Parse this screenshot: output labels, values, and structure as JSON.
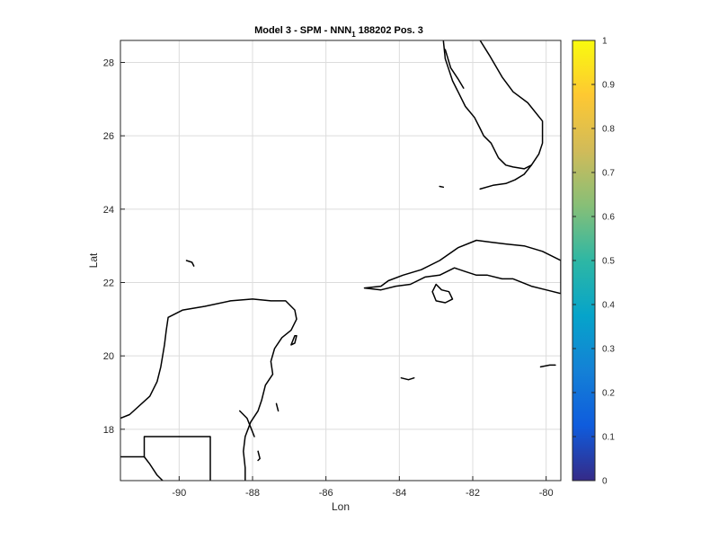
{
  "chart_data": {
    "type": "map",
    "title_parts": [
      "Model 3 - SPM - NNN",
      "1",
      " 188202 Pos. 3"
    ],
    "xlabel": "Lon",
    "ylabel": "Lat",
    "xlim": [
      -91.6,
      -79.6
    ],
    "ylim": [
      16.6,
      28.6
    ],
    "xticks": [
      -90,
      -88,
      -86,
      -84,
      -82,
      -80
    ],
    "yticks": [
      18,
      20,
      22,
      24,
      26,
      28
    ],
    "grid": true,
    "colorbar": {
      "position": "right",
      "colormap": "parula",
      "range": [
        0,
        1
      ],
      "ticks": [
        0,
        0.1,
        0.2,
        0.3,
        0.4,
        0.5,
        0.6,
        0.7,
        0.8,
        0.9,
        1
      ],
      "tick_labels": [
        "0",
        "0.1",
        "0.2",
        "0.3",
        "0.4",
        "0.5",
        "0.6",
        "0.7",
        "0.8",
        "0.9",
        "1"
      ],
      "colors": [
        "#352a87",
        "#0f5cdd",
        "#1481d6",
        "#06a4ca",
        "#2eb7a4",
        "#87bf77",
        "#d1bb59",
        "#fec832",
        "#f9fb0e"
      ]
    },
    "colors": {
      "coast": "#000000",
      "grid": "#dcdcdc",
      "axis": "#262626"
    },
    "coastlines": [
      {
        "name": "florida",
        "points": [
          [
            -81.8,
            28.6
          ],
          [
            -81.55,
            28.2
          ],
          [
            -81.2,
            27.6
          ],
          [
            -80.9,
            27.2
          ],
          [
            -80.5,
            26.9
          ],
          [
            -80.1,
            26.4
          ],
          [
            -80.1,
            25.8
          ],
          [
            -80.2,
            25.5
          ],
          [
            -80.4,
            25.2
          ],
          [
            -80.6,
            25.1
          ],
          [
            -80.9,
            25.15
          ],
          [
            -81.1,
            25.2
          ],
          [
            -81.3,
            25.4
          ],
          [
            -81.5,
            25.8
          ],
          [
            -81.7,
            26.0
          ],
          [
            -81.8,
            26.2
          ],
          [
            -81.95,
            26.5
          ],
          [
            -82.2,
            26.8
          ],
          [
            -82.4,
            27.2
          ],
          [
            -82.55,
            27.5
          ],
          [
            -82.65,
            27.8
          ],
          [
            -82.75,
            28.1
          ],
          [
            -82.8,
            28.6
          ]
        ]
      },
      {
        "name": "florida-gulf-coast-upper",
        "points": [
          [
            -82.75,
            28.35
          ],
          [
            -82.6,
            27.85
          ],
          [
            -82.4,
            27.55
          ],
          [
            -82.25,
            27.3
          ]
        ]
      },
      {
        "name": "florida-keys",
        "points": [
          [
            -80.4,
            25.2
          ],
          [
            -80.6,
            24.95
          ],
          [
            -80.85,
            24.8
          ],
          [
            -81.1,
            24.7
          ],
          [
            -81.45,
            24.65
          ],
          [
            -81.8,
            24.55
          ]
        ]
      },
      {
        "name": "dry-tortugas",
        "points": [
          [
            -82.9,
            24.62
          ],
          [
            -82.8,
            24.6
          ]
        ]
      },
      {
        "name": "cuba",
        "points": [
          [
            -84.95,
            21.85
          ],
          [
            -84.5,
            21.9
          ],
          [
            -84.3,
            22.05
          ],
          [
            -83.9,
            22.2
          ],
          [
            -83.4,
            22.35
          ],
          [
            -82.9,
            22.6
          ],
          [
            -82.4,
            22.95
          ],
          [
            -81.9,
            23.15
          ],
          [
            -81.5,
            23.1
          ],
          [
            -81.1,
            23.05
          ],
          [
            -80.6,
            23.0
          ],
          [
            -80.1,
            22.85
          ],
          [
            -79.6,
            22.6
          ],
          [
            -79.6,
            21.7
          ],
          [
            -80.0,
            21.8
          ],
          [
            -80.4,
            21.9
          ],
          [
            -80.9,
            22.1
          ],
          [
            -81.2,
            22.1
          ],
          [
            -81.6,
            22.2
          ],
          [
            -81.9,
            22.2
          ],
          [
            -82.2,
            22.3
          ],
          [
            -82.5,
            22.4
          ],
          [
            -82.9,
            22.2
          ],
          [
            -83.3,
            22.15
          ],
          [
            -83.7,
            21.95
          ],
          [
            -84.1,
            21.9
          ],
          [
            -84.5,
            21.8
          ],
          [
            -84.95,
            21.85
          ]
        ]
      },
      {
        "name": "isla-de-la-juventud",
        "points": [
          [
            -83.0,
            21.95
          ],
          [
            -82.85,
            21.8
          ],
          [
            -82.65,
            21.75
          ],
          [
            -82.55,
            21.55
          ],
          [
            -82.75,
            21.45
          ],
          [
            -83.0,
            21.5
          ],
          [
            -83.1,
            21.75
          ],
          [
            -83.0,
            21.95
          ]
        ]
      },
      {
        "name": "cozumel",
        "points": [
          [
            -86.8,
            20.55
          ],
          [
            -86.85,
            20.35
          ],
          [
            -86.95,
            20.3
          ],
          [
            -86.85,
            20.55
          ],
          [
            -86.8,
            20.55
          ]
        ]
      },
      {
        "name": "yucatan",
        "points": [
          [
            -91.6,
            18.3
          ],
          [
            -91.35,
            18.4
          ],
          [
            -90.8,
            18.9
          ],
          [
            -90.6,
            19.3
          ],
          [
            -90.5,
            19.7
          ],
          [
            -90.4,
            20.3
          ],
          [
            -90.35,
            20.7
          ],
          [
            -90.3,
            21.05
          ],
          [
            -89.9,
            21.25
          ],
          [
            -89.3,
            21.35
          ],
          [
            -88.6,
            21.5
          ],
          [
            -88.0,
            21.55
          ],
          [
            -87.5,
            21.5
          ],
          [
            -87.1,
            21.5
          ],
          [
            -86.85,
            21.25
          ],
          [
            -86.8,
            21.0
          ],
          [
            -86.95,
            20.7
          ],
          [
            -87.2,
            20.5
          ],
          [
            -87.4,
            20.2
          ],
          [
            -87.5,
            19.85
          ],
          [
            -87.45,
            19.5
          ],
          [
            -87.65,
            19.2
          ],
          [
            -87.75,
            18.8
          ],
          [
            -87.85,
            18.5
          ],
          [
            -88.05,
            18.2
          ],
          [
            -88.2,
            17.8
          ],
          [
            -88.25,
            17.4
          ],
          [
            -88.2,
            16.95
          ],
          [
            -88.2,
            16.6
          ]
        ]
      },
      {
        "name": "yucatan-bay-detail",
        "points": [
          [
            -88.35,
            18.5
          ],
          [
            -88.15,
            18.3
          ],
          [
            -88.05,
            18.05
          ],
          [
            -87.95,
            17.8
          ]
        ]
      },
      {
        "name": "mexico-belize-border",
        "points": [
          [
            -89.15,
            16.6
          ],
          [
            -89.15,
            17.8
          ],
          [
            -90.95,
            17.8
          ],
          [
            -90.95,
            17.25
          ],
          [
            -91.6,
            17.25
          ]
        ]
      },
      {
        "name": "mexico-guatemala-border",
        "points": [
          [
            -90.95,
            17.25
          ],
          [
            -90.8,
            17.05
          ],
          [
            -90.6,
            16.75
          ],
          [
            -90.45,
            16.6
          ]
        ]
      },
      {
        "name": "arrecife-alacranes",
        "points": [
          [
            -89.8,
            22.6
          ],
          [
            -89.65,
            22.55
          ],
          [
            -89.6,
            22.45
          ]
        ]
      },
      {
        "name": "swan-islands",
        "points": [
          [
            -83.95,
            19.4
          ],
          [
            -83.75,
            19.35
          ],
          [
            -83.6,
            19.4
          ]
        ]
      },
      {
        "name": "cayman-islands",
        "points": [
          [
            -80.15,
            19.7
          ],
          [
            -79.9,
            19.75
          ],
          [
            -79.75,
            19.75
          ]
        ]
      },
      {
        "name": "belize-cayes",
        "points": [
          [
            -87.85,
            17.4
          ],
          [
            -87.8,
            17.2
          ],
          [
            -87.85,
            17.15
          ]
        ]
      },
      {
        "name": "chinchorro",
        "points": [
          [
            -87.35,
            18.7
          ],
          [
            -87.3,
            18.5
          ]
        ]
      }
    ]
  }
}
